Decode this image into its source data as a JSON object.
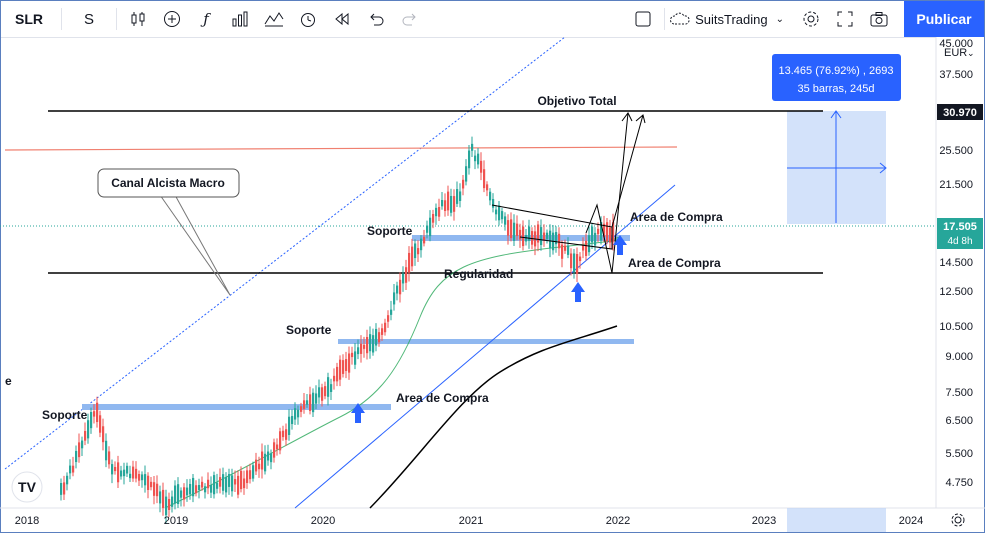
{
  "toolbar": {
    "symbol": "SLR",
    "interval": "S",
    "undo_icon": "undo-icon",
    "redo_icon": "redo-icon",
    "account": "SuitsTrading",
    "publish_label": "Publicar"
  },
  "currency": "EUR",
  "price_axis": {
    "ticks": [
      "45.000",
      "37.500",
      "25.500",
      "21.500",
      "14.500",
      "12.500",
      "10.500",
      "9.000",
      "7.500",
      "6.500",
      "5.500",
      "4.750"
    ],
    "marker_top": "30.970",
    "marker_current": "17.505",
    "marker_countdown": "4d 8h"
  },
  "time_axis": {
    "ticks": [
      "2018",
      "2019",
      "2020",
      "2021",
      "2022",
      "2023",
      "2024"
    ]
  },
  "measure_tooltip": {
    "line1": "13.465 (76.92%) , 2693",
    "line2": "35 barras, 245d"
  },
  "annotations": {
    "objetivo": "Objetivo Total",
    "canal": "Canal Alcista Macro",
    "soporte_1": "Soporte",
    "soporte_2": "Soporte",
    "soporte_3": "Soporte",
    "regularidad": "Regularidad",
    "area_1": "Area de Compra",
    "area_2": "Area de Compra",
    "area_3": "Area de Compra",
    "left_edge": "e"
  },
  "colors": {
    "accent": "#2962ff",
    "support_band": "#90b8f0",
    "red_line": "#f08070",
    "up_candle": "#26a69a",
    "down_candle": "#ef5350"
  }
}
